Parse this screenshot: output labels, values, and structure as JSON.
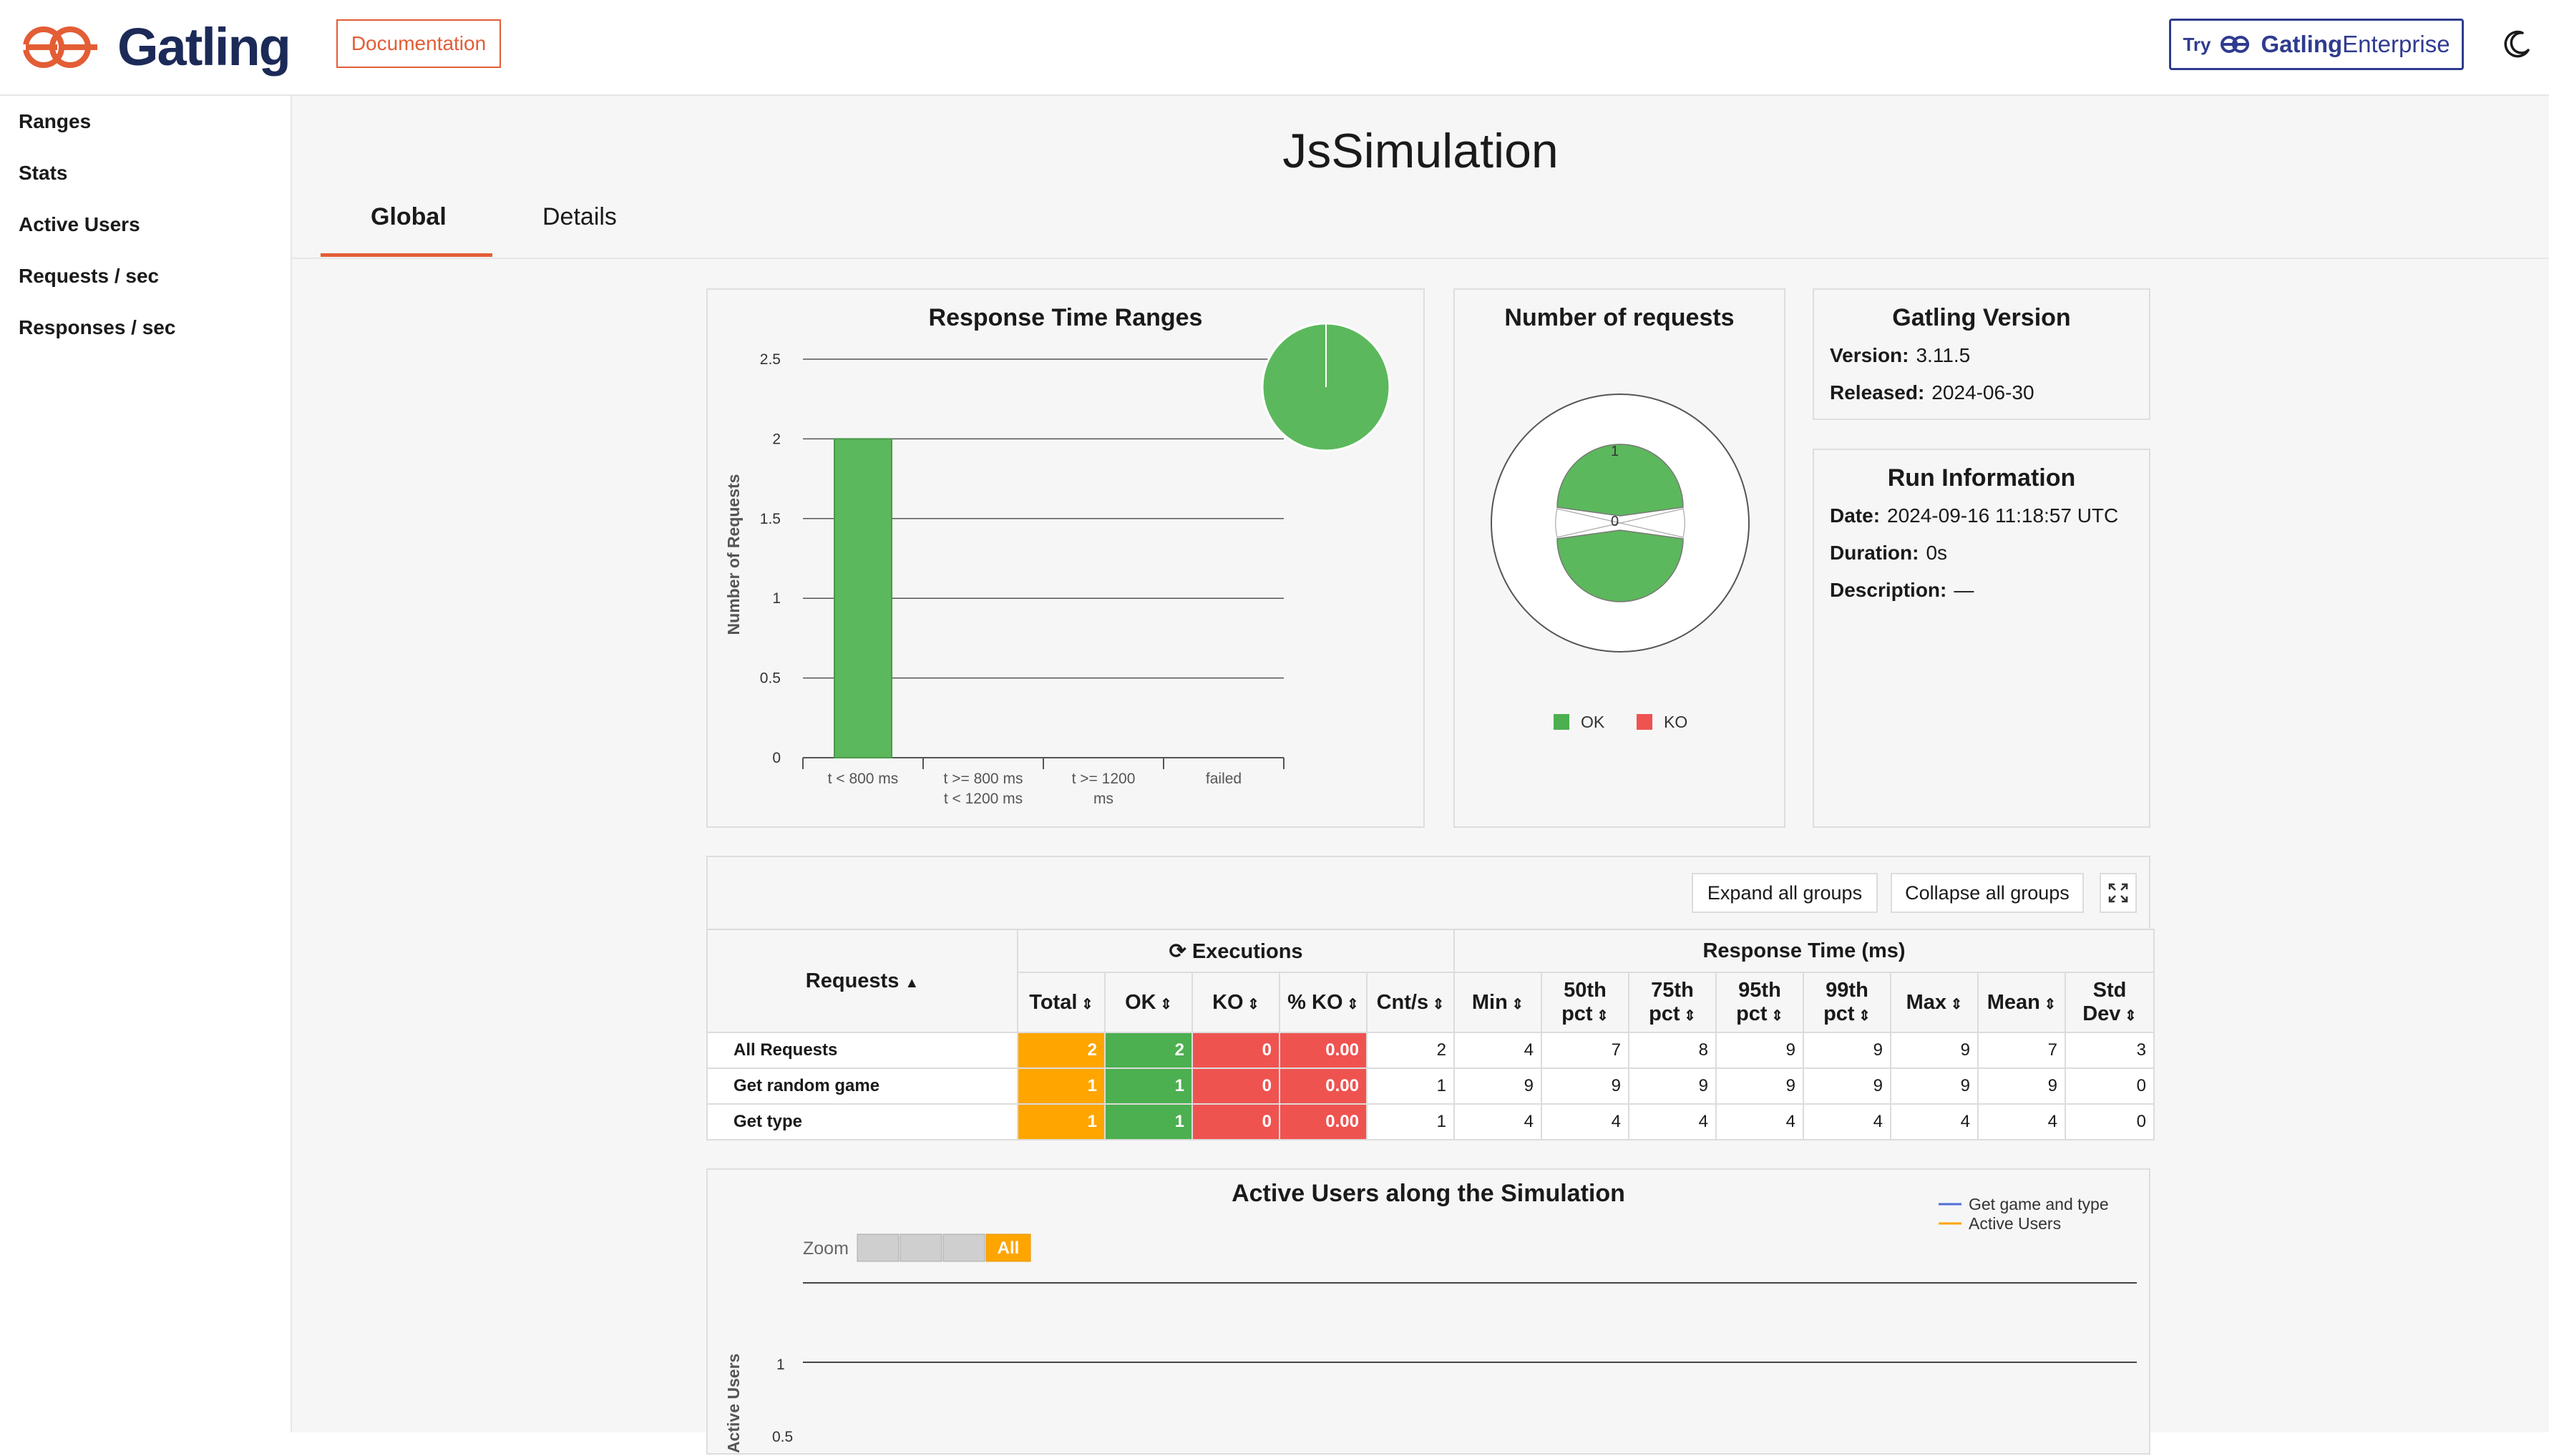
{
  "header": {
    "logo_text": "Gatling",
    "doc_label": "Documentation",
    "enterprise": {
      "try": "Try",
      "brand": "Gatling",
      "suffix": "Enterprise"
    }
  },
  "sidebar": {
    "items": [
      {
        "label": "Ranges"
      },
      {
        "label": "Stats"
      },
      {
        "label": "Active Users"
      },
      {
        "label": "Requests / sec"
      },
      {
        "label": "Responses / sec"
      }
    ]
  },
  "main": {
    "title": "JsSimulation",
    "tabs": [
      {
        "label": "Global"
      },
      {
        "label": "Details"
      }
    ]
  },
  "response_ranges": {
    "title": "Response Time Ranges",
    "ylabel": "Number of Requests",
    "yticks": [
      "0",
      "0.5",
      "1",
      "1.5",
      "2",
      "2.5"
    ],
    "categories": [
      [
        "t < 800 ms"
      ],
      [
        "t >= 800 ms",
        "t < 1200 ms"
      ],
      [
        "t >= 1200",
        "ms"
      ],
      [
        "failed"
      ]
    ]
  },
  "requests_pie": {
    "title": "Number of requests",
    "tick_top": "1",
    "tick_center": "0",
    "legend": [
      {
        "label": "OK",
        "color": "#4caf50"
      },
      {
        "label": "KO",
        "color": "#ef5350"
      }
    ]
  },
  "version": {
    "title": "Gatling Version",
    "version_label": "Version:",
    "version_value": "3.11.5",
    "released_label": "Released:",
    "released_value": "2024-06-30"
  },
  "run_info": {
    "title": "Run Information",
    "date_label": "Date:",
    "date_value": "2024-09-16 11:18:57 UTC",
    "duration_label": "Duration:",
    "duration_value": "0s",
    "description_label": "Description:",
    "description_value": "—"
  },
  "stats_table": {
    "expand_label": "Expand all groups",
    "collapse_label": "Collapse all groups",
    "requests_header": "Requests",
    "executions_header": "Executions",
    "response_time_header": "Response Time (ms)",
    "columns": [
      "Total",
      "OK",
      "KO",
      "% KO",
      "Cnt/s",
      "Min",
      "50th pct",
      "75th pct",
      "95th pct",
      "99th pct",
      "Max",
      "Mean",
      "Std Dev"
    ],
    "rows": [
      {
        "name": "All Requests",
        "values": [
          "2",
          "2",
          "0",
          "0.00",
          "2",
          "4",
          "7",
          "8",
          "9",
          "9",
          "9",
          "7",
          "3"
        ]
      },
      {
        "name": "Get random game",
        "values": [
          "1",
          "1",
          "0",
          "0.00",
          "1",
          "9",
          "9",
          "9",
          "9",
          "9",
          "9",
          "9",
          "0"
        ]
      },
      {
        "name": "Get type",
        "values": [
          "1",
          "1",
          "0",
          "0.00",
          "1",
          "4",
          "4",
          "4",
          "4",
          "4",
          "4",
          "4",
          "0"
        ]
      }
    ]
  },
  "active_users": {
    "title": "Active Users along the Simulation",
    "zoom_label": "Zoom",
    "zoom_all": "All",
    "legend": [
      {
        "label": "Get game and type",
        "color": "#4e6fd6"
      },
      {
        "label": "Active Users",
        "color": "#ffa500"
      }
    ],
    "ylabel": "of Active Users",
    "ytick_1": "1",
    "ytick_05": "0.5"
  },
  "colors": {
    "accent": "#e35d35",
    "ok": "#4caf50",
    "ko": "#ef5350",
    "total": "#ffa500",
    "brand": "#1c2a58"
  },
  "chart_data": [
    {
      "type": "bar",
      "title": "Response Time Ranges",
      "categories": [
        "t < 800 ms",
        "t >= 800 ms t < 1200 ms",
        "t >= 1200 ms",
        "failed"
      ],
      "values": [
        2,
        0,
        0,
        0
      ],
      "ylabel": "Number of Requests",
      "ylim": [
        0,
        2.5
      ]
    },
    {
      "type": "pie",
      "title": "Number of requests",
      "categories": [
        "OK",
        "KO"
      ],
      "values": [
        2,
        0
      ]
    }
  ]
}
